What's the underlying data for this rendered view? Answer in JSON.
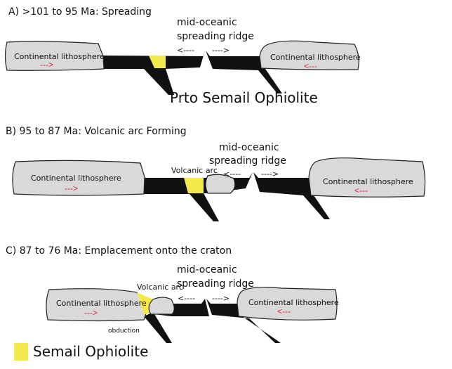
{
  "colors": {
    "ophiolite": "#f5e84a",
    "continent": "#d9d9d9",
    "oceanic_slab": "#111111",
    "motion_arrow": "#e0203a"
  },
  "panels": [
    {
      "title": "A) >101 to 95 Ma: Spreading",
      "ridge_label_1": "mid-oceanic",
      "ridge_label_2": "spreading ridge",
      "arrow_left": "<----",
      "arrow_right": "---->",
      "continent_left": "Continental lithosphere",
      "continent_right": "Continental lithosphere",
      "red_arrow_left": "--->",
      "red_arrow_right": "<---",
      "caption": "Prto Semail Ophiolite"
    },
    {
      "title": "B) 95 to 87 Ma: Volcanic arc Forming",
      "ridge_label_1": "mid-oceanic",
      "ridge_label_2": "spreading ridge",
      "arrow_left": "<----",
      "arrow_right": "---->",
      "continent_left": "Continental lithosphere",
      "continent_right": "Continental lithosphere",
      "red_arrow_left": "--->",
      "red_arrow_right": "<---",
      "arc_label": "Volcanic arc"
    },
    {
      "title": "C) 87 to 76 Ma: Emplacement onto the craton",
      "ridge_label_1": "mid-oceanic",
      "ridge_label_2": "spreading ridge",
      "arrow_left": "<----",
      "arrow_right": "---->",
      "continent_left": "Continental lithosphere",
      "continent_right": "Continental lithosphere",
      "red_arrow_left": "--->",
      "red_arrow_right": "<---",
      "arc_label": "Volcanic arc",
      "obduction_label": "obduction"
    }
  ],
  "legend": {
    "label": "Semail Ophiolite"
  }
}
